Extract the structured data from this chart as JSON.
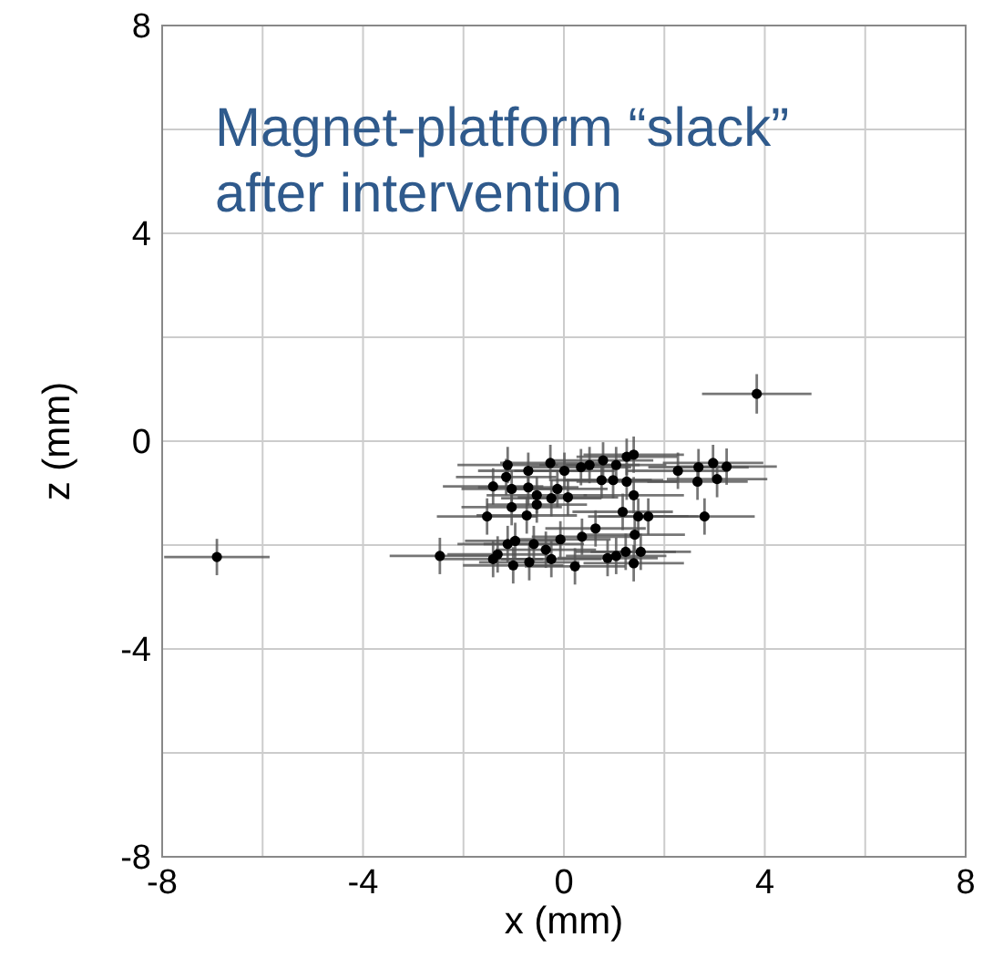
{
  "chart_data": {
    "type": "scatter",
    "xlabel": "x (mm)",
    "ylabel": "z (mm)",
    "annotations": [
      "Magnet-platform “slack”\nafter intervention"
    ],
    "xlim": [
      -8,
      8
    ],
    "ylim": [
      -8,
      8
    ],
    "xticks": [
      -8,
      {
        "value": -6,
        "label": null
      },
      -4,
      {
        "value": -2,
        "label": null
      },
      0,
      {
        "value": 2,
        "label": null
      },
      4,
      {
        "value": 6,
        "label": null
      },
      8
    ],
    "yticks": [
      -8,
      {
        "value": -6,
        "label": null
      },
      -4,
      {
        "value": -2,
        "label": null
      },
      0,
      {
        "value": 2,
        "label": null
      },
      4,
      {
        "value": 6,
        "label": null
      },
      8
    ],
    "grid": true,
    "marker": "circle",
    "series": [
      {
        "color": "#000000",
        "x": [
          -1.12,
          -0.27,
          0.01,
          0.34,
          0.51,
          0.78,
          1.04,
          1.25,
          1.39,
          2.27,
          2.68,
          2.97,
          3.24,
          -1.15,
          -0.71,
          0.75,
          0.98,
          1.25,
          2.66,
          3.05,
          -1.41,
          -1.04,
          -0.71,
          -0.13,
          -0.54,
          -0.25,
          0.08,
          1.39,
          -1.04,
          -0.74,
          -1.53,
          -0.54,
          1.17,
          1.48,
          1.68,
          2.8,
          0.63,
          -0.07,
          0.36,
          1.41,
          -2.47,
          -1.41,
          -1.32,
          -1.12,
          -0.97,
          -1.01,
          -0.69,
          -0.6,
          -0.36,
          -0.25,
          0.22,
          0.87,
          1.04,
          1.23,
          1.39,
          1.53,
          3.84,
          -6.91
        ],
        "values": [
          -0.46,
          -0.42,
          -0.57,
          -0.5,
          -0.46,
          -0.37,
          -0.46,
          -0.3,
          -0.26,
          -0.57,
          -0.5,
          -0.42,
          -0.49,
          -0.69,
          -0.57,
          -0.75,
          -0.75,
          -0.78,
          -0.78,
          -0.73,
          -0.87,
          -0.92,
          -0.89,
          -0.92,
          -1.04,
          -1.1,
          -1.08,
          -1.04,
          -1.27,
          -1.43,
          -1.45,
          -1.22,
          -1.36,
          -1.45,
          -1.45,
          -1.45,
          -1.68,
          -1.89,
          -1.84,
          -1.8,
          -2.21,
          -2.27,
          -2.18,
          -1.98,
          -1.92,
          -2.39,
          -2.33,
          -1.98,
          -2.09,
          -2.27,
          -2.41,
          -2.25,
          -2.21,
          -2.13,
          -2.35,
          -2.13,
          0.91,
          -2.23
        ],
        "errors": [
          0.35,
          0.35,
          0.35,
          0.35,
          0.35,
          0.35,
          0.35,
          0.35,
          0.35,
          0.35,
          0.35,
          0.35,
          0.35,
          0.35,
          0.35,
          0.35,
          0.35,
          0.35,
          0.35,
          0.35,
          0.35,
          0.35,
          0.35,
          0.35,
          0.35,
          0.35,
          0.35,
          0.35,
          0.35,
          0.35,
          0.35,
          0.35,
          0.35,
          0.35,
          0.35,
          0.35,
          0.35,
          0.35,
          0.35,
          0.35,
          0.35,
          0.35,
          0.35,
          0.35,
          0.35,
          0.35,
          0.35,
          0.35,
          0.35,
          0.35,
          0.35,
          0.35,
          0.35,
          0.35,
          0.35,
          0.35,
          0.38,
          0.35
        ],
        "xerrors": [
          1,
          1,
          1,
          1,
          1,
          1,
          1,
          1,
          1,
          1,
          1,
          1,
          1,
          1,
          1,
          1,
          1,
          1,
          1,
          1,
          1,
          1,
          1,
          1,
          1,
          1,
          1,
          1,
          1,
          1,
          1,
          1,
          1,
          1,
          1,
          1,
          1,
          1,
          1,
          1,
          1,
          1,
          1,
          1,
          1,
          1,
          1,
          1,
          1,
          1,
          1,
          1,
          1,
          1,
          1,
          1,
          1.09,
          1.05
        ]
      }
    ]
  }
}
